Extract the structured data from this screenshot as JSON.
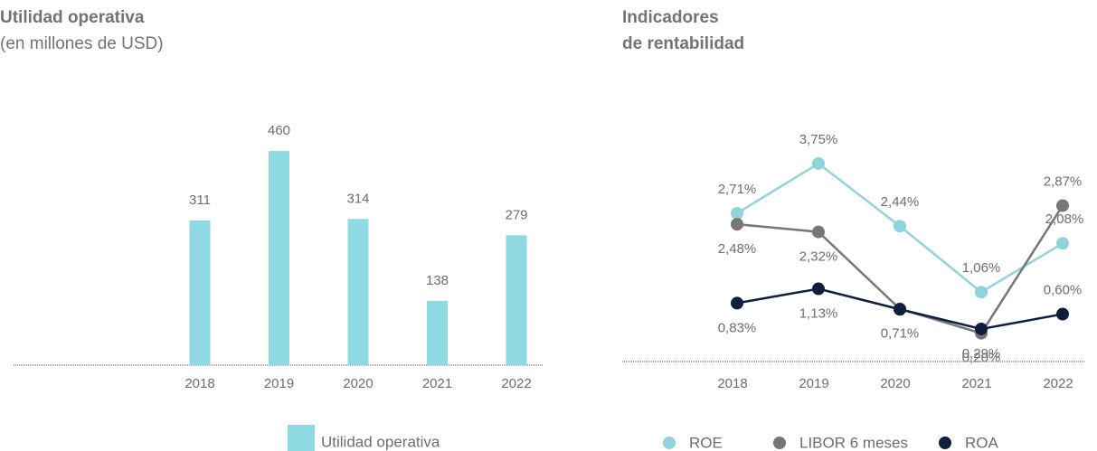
{
  "chart_data": [
    {
      "type": "bar",
      "title": "Utilidad operativa",
      "subtitle": "(en millones de USD)",
      "categories": [
        "2018",
        "2019",
        "2020",
        "2021",
        "2022"
      ],
      "series": [
        {
          "name": "Utilidad operativa",
          "color": "#8fd9e2",
          "values": [
            311,
            460,
            314,
            138,
            279
          ]
        }
      ]
    },
    {
      "type": "line",
      "title": [
        "Indicadores",
        "de rentabilidad"
      ],
      "categories": [
        "2018",
        "2019",
        "2020",
        "2021",
        "2022"
      ],
      "series": [
        {
          "name": "ROE",
          "color": "#8fd3dc",
          "values": [
            2.71,
            3.75,
            2.44,
            1.06,
            2.08
          ],
          "value_labels": [
            "2,71%",
            "3,75%",
            "2,44%",
            "1,06%",
            "2,08%"
          ]
        },
        {
          "name": "LIBOR 6 meses",
          "color": "#77777a",
          "values": [
            2.48,
            2.32,
            0.71,
            0.2,
            2.87
          ],
          "value_labels": [
            "2,48%",
            "2,32%",
            "0,71%",
            "0,20%",
            "2,87%"
          ]
        },
        {
          "name": "ROA",
          "color": "#0d1f3c",
          "values": [
            0.83,
            1.13,
            0.7,
            0.29,
            0.6
          ],
          "value_labels": [
            "0,83%",
            "1,13%",
            null,
            "0,29%",
            "0,60%"
          ]
        }
      ]
    }
  ]
}
